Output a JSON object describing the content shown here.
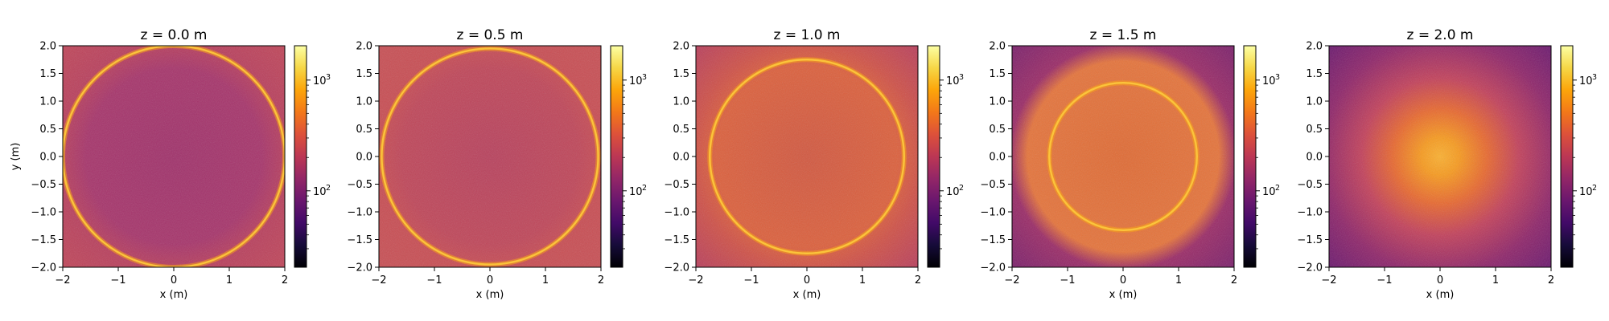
{
  "chart_data": [
    {
      "type": "heatmap",
      "title": "z = 0.0 m",
      "xlabel": "x (m)",
      "ylabel": "y (m)",
      "xlim": [
        -2,
        2
      ],
      "ylim": [
        -2,
        2
      ],
      "x_ticks": [
        "−2",
        "−1",
        "0",
        "1",
        "2"
      ],
      "y_ticks": [
        "2.0",
        "1.5",
        "1.0",
        "0.5",
        "0.0",
        "−0.5",
        "−1.0",
        "−1.5",
        "−2.0"
      ],
      "colorbar_scale": "log",
      "colorbar_ticks": [
        "10",
        "10"
      ],
      "colorbar_tick_exponents": [
        "3",
        "2"
      ],
      "colormap": "inferno",
      "ring_radius": 2.0
    },
    {
      "type": "heatmap",
      "title": "z = 0.5 m",
      "xlabel": "x (m)",
      "ylabel": "",
      "xlim": [
        -2,
        2
      ],
      "ylim": [
        -2,
        2
      ],
      "x_ticks": [
        "−2",
        "−1",
        "0",
        "1",
        "2"
      ],
      "y_ticks": [
        "2.0",
        "1.5",
        "1.0",
        "0.5",
        "0.0",
        "−0.5",
        "−1.0",
        "−1.5",
        "−2.0"
      ],
      "colorbar_scale": "log",
      "colorbar_ticks": [
        "10",
        "10"
      ],
      "colorbar_tick_exponents": [
        "3",
        "2"
      ],
      "colormap": "inferno",
      "ring_radius": 1.95
    },
    {
      "type": "heatmap",
      "title": "z = 1.0 m",
      "xlabel": "x (m)",
      "ylabel": "",
      "xlim": [
        -2,
        2
      ],
      "ylim": [
        -2,
        2
      ],
      "x_ticks": [
        "−2",
        "−1",
        "0",
        "1",
        "2"
      ],
      "y_ticks": [
        "2.0",
        "1.5",
        "1.0",
        "0.5",
        "0.0",
        "−0.5",
        "−1.0",
        "−1.5",
        "−2.0"
      ],
      "colorbar_scale": "log",
      "colorbar_ticks": [
        "10",
        "10"
      ],
      "colorbar_tick_exponents": [
        "3",
        "2"
      ],
      "colormap": "inferno",
      "ring_radius": 1.75
    },
    {
      "type": "heatmap",
      "title": "z = 1.5 m",
      "xlabel": "x (m)",
      "ylabel": "",
      "xlim": [
        -2,
        2
      ],
      "ylim": [
        -2,
        2
      ],
      "x_ticks": [
        "−2",
        "−1",
        "0",
        "1",
        "2"
      ],
      "y_ticks": [
        "2.0",
        "1.5",
        "1.0",
        "0.5",
        "0.0",
        "−0.5",
        "−1.0",
        "−1.5",
        "−2.0"
      ],
      "colorbar_scale": "log",
      "colorbar_ticks": [
        "10",
        "10"
      ],
      "colorbar_tick_exponents": [
        "3",
        "2"
      ],
      "colormap": "inferno",
      "ring_radius": 1.33
    },
    {
      "type": "heatmap",
      "title": "z = 2.0 m",
      "xlabel": "x (m)",
      "ylabel": "",
      "xlim": [
        -2,
        2
      ],
      "ylim": [
        -2,
        2
      ],
      "x_ticks": [
        "−2",
        "−1",
        "0",
        "1",
        "2"
      ],
      "y_ticks": [
        "2.0",
        "1.5",
        "1.0",
        "0.5",
        "0.0",
        "−0.5",
        "−1.0",
        "−1.5",
        "−2.0"
      ],
      "colorbar_scale": "log",
      "colorbar_ticks": [
        "10",
        "10"
      ],
      "colorbar_tick_exponents": [
        "3",
        "2"
      ],
      "colormap": "inferno",
      "ring_radius": 0
    }
  ]
}
